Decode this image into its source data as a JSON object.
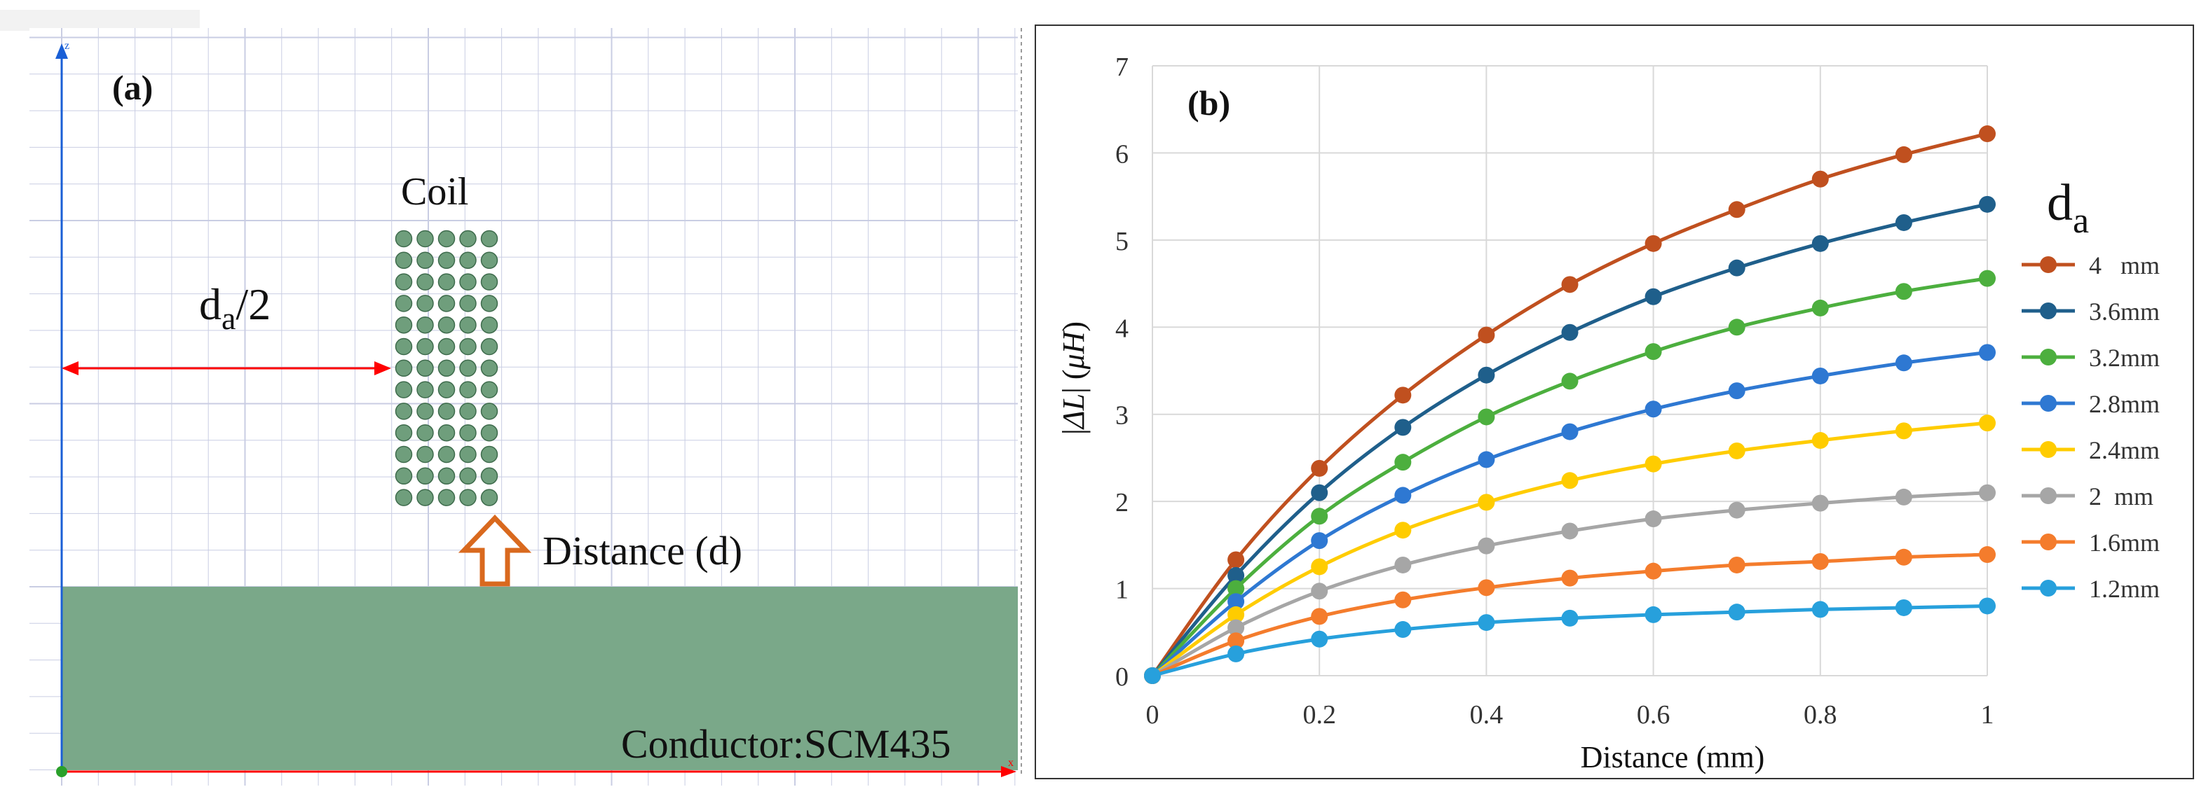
{
  "panel_a": {
    "label": "(a)",
    "axis_z": "z",
    "axis_x": "x",
    "coil_label": "Coil",
    "radius_label_main": "d",
    "radius_label_sub": "a",
    "radius_label_tail": "/2",
    "distance_label": "Distance (d)",
    "conductor_label": "Conductor:SCM435",
    "coil_rows": 13,
    "coil_cols": 5,
    "colors": {
      "conductor": "#7aa889",
      "coil_dot": "#6f9e7c",
      "arrow_red": "#ff0000",
      "arrow_orange": "#d9691e",
      "axis_blue": "#1a5fd6",
      "grid": "#c9cde3"
    }
  },
  "chart_data": {
    "type": "line",
    "panel_label": "(b)",
    "title": "",
    "xlabel": "Distance (mm)",
    "ylabel_parts": [
      "|",
      "ΔL",
      "| (",
      "μH",
      ")"
    ],
    "x": [
      0,
      0.1,
      0.2,
      0.3,
      0.4,
      0.5,
      0.6,
      0.7,
      0.8,
      0.9,
      1
    ],
    "x_ticks": [
      "0",
      "0.2",
      "0.4",
      "0.6",
      "0.8",
      "1"
    ],
    "x_tick_values": [
      0,
      0.2,
      0.4,
      0.6,
      0.8,
      1
    ],
    "y_ticks": [
      "0",
      "1",
      "2",
      "3",
      "4",
      "5",
      "6",
      "7"
    ],
    "y_tick_values": [
      0,
      1,
      2,
      3,
      4,
      5,
      6,
      7
    ],
    "xlim": [
      0,
      1
    ],
    "ylim": [
      0,
      7
    ],
    "grid": true,
    "legend_title_main": "d",
    "legend_title_sub": "a",
    "legend_position": "right",
    "series": [
      {
        "name": "4   mm",
        "color": "#c0501f",
        "values": [
          0,
          1.33,
          2.38,
          3.22,
          3.91,
          4.49,
          4.96,
          5.35,
          5.7,
          5.98,
          6.22
        ]
      },
      {
        "name": "3.6mm",
        "color": "#1f5f8b",
        "values": [
          0,
          1.15,
          2.1,
          2.85,
          3.45,
          3.94,
          4.35,
          4.68,
          4.96,
          5.2,
          5.41
        ]
      },
      {
        "name": "3.2mm",
        "color": "#4caf3e",
        "values": [
          0,
          1.0,
          1.83,
          2.45,
          2.97,
          3.38,
          3.72,
          4.0,
          4.22,
          4.41,
          4.56
        ]
      },
      {
        "name": "2.8mm",
        "color": "#2e78d2",
        "values": [
          0,
          0.85,
          1.55,
          2.07,
          2.48,
          2.8,
          3.06,
          3.27,
          3.44,
          3.59,
          3.71
        ]
      },
      {
        "name": "2.4mm",
        "color": "#ffcc00",
        "values": [
          0,
          0.7,
          1.25,
          1.67,
          1.99,
          2.24,
          2.43,
          2.58,
          2.7,
          2.81,
          2.9
        ]
      },
      {
        "name": "2  mm",
        "color": "#a6a6a6",
        "values": [
          0,
          0.55,
          0.97,
          1.27,
          1.49,
          1.66,
          1.8,
          1.9,
          1.98,
          2.05,
          2.1
        ]
      },
      {
        "name": "1.6mm",
        "color": "#f47c2c",
        "values": [
          0,
          0.4,
          0.68,
          0.87,
          1.01,
          1.12,
          1.2,
          1.27,
          1.31,
          1.36,
          1.39
        ]
      },
      {
        "name": "1.2mm",
        "color": "#27a0dc",
        "values": [
          0,
          0.25,
          0.42,
          0.53,
          0.61,
          0.66,
          0.7,
          0.73,
          0.76,
          0.78,
          0.8
        ]
      }
    ]
  }
}
